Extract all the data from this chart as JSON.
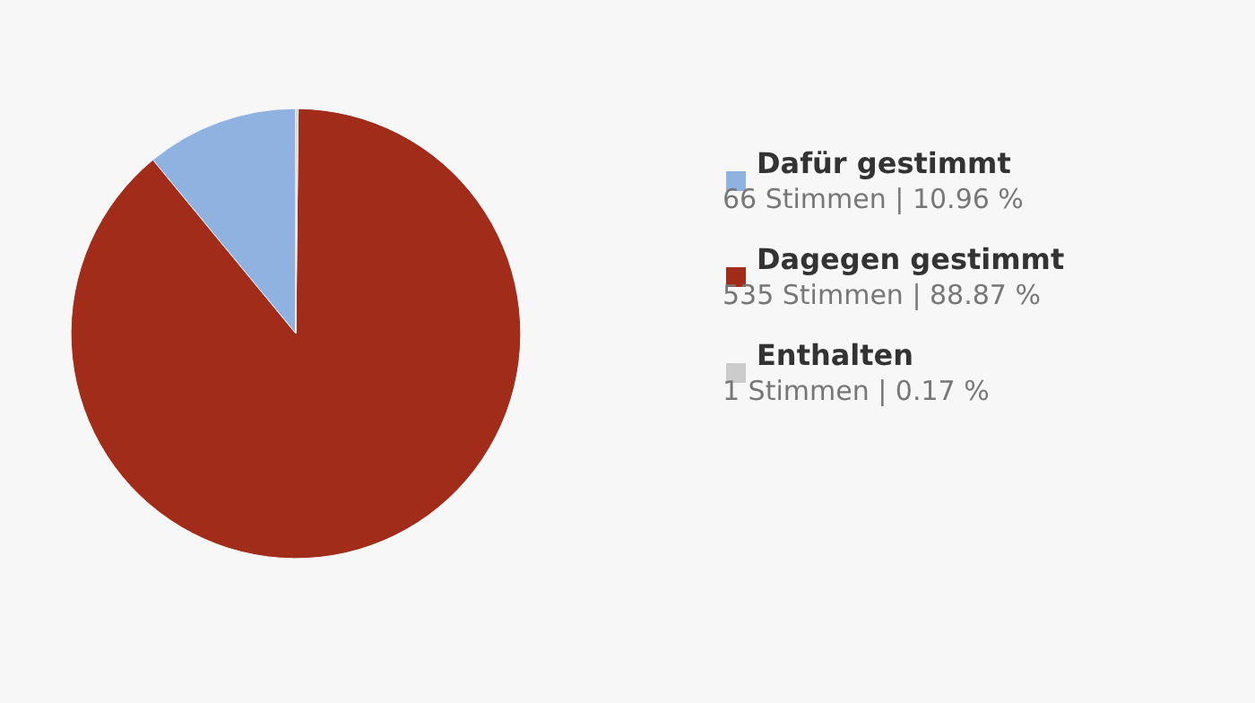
{
  "chart_data": {
    "type": "pie",
    "categories": [
      "Dafür gestimmt",
      "Dagegen gestimmt",
      "Enthalten"
    ],
    "values": [
      66,
      535,
      1
    ],
    "colors": [
      "#8fb2e1",
      "#a02c19",
      "#cccccc"
    ],
    "value_labels": [
      "66 Stimmen | 10.96 %",
      "535 Stimmen | 88.87 %",
      "1 Stimmen | 0.17 %"
    ],
    "legend": "right"
  }
}
